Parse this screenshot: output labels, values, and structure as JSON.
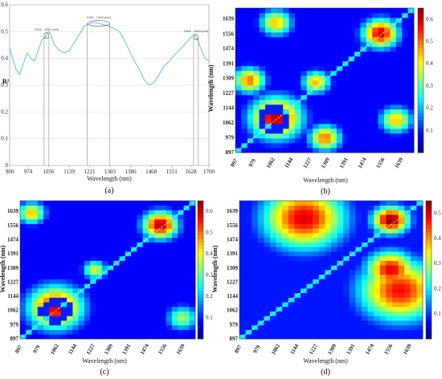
{
  "chart_data": [
    {
      "type": "line",
      "panel": "a",
      "caption": "(a)",
      "ylabel": "R²",
      "xlabel": "Wavelength (nm)",
      "xlim": [
        900,
        1700
      ],
      "ylim": [
        0,
        0.6
      ],
      "xticks": [
        900,
        974,
        1056,
        1139,
        1221,
        1303,
        1386,
        1468,
        1551,
        1628,
        1700
      ],
      "yticks": [
        0,
        0.1,
        0.2,
        0.3,
        0.4,
        0.5,
        0.6
      ],
      "line_color": "#6cc6d8",
      "series": [
        {
          "x": [
            900,
            912,
            925,
            940,
            955,
            970,
            985,
            1000,
            1015,
            1030,
            1045,
            1056,
            1065,
            1080,
            1100,
            1120,
            1140,
            1160,
            1180,
            1200,
            1220,
            1240,
            1260,
            1280,
            1300,
            1320,
            1340,
            1360,
            1380,
            1400,
            1420,
            1440,
            1460,
            1480,
            1500,
            1520,
            1540,
            1560,
            1580,
            1600,
            1620,
            1640,
            1655,
            1670,
            1685,
            1700
          ],
          "y": [
            0.44,
            0.4,
            0.36,
            0.34,
            0.38,
            0.42,
            0.4,
            0.39,
            0.43,
            0.47,
            0.48,
            0.5,
            0.49,
            0.45,
            0.43,
            0.42,
            0.43,
            0.46,
            0.49,
            0.52,
            0.53,
            0.535,
            0.53,
            0.525,
            0.52,
            0.51,
            0.5,
            0.47,
            0.43,
            0.39,
            0.36,
            0.32,
            0.3,
            0.31,
            0.34,
            0.37,
            0.39,
            0.41,
            0.43,
            0.45,
            0.47,
            0.49,
            0.47,
            0.43,
            0.4,
            0.39
          ]
        }
      ],
      "annotations": [
        {
          "label": "1034 - 1061 (nm)",
          "x": 1048
        },
        {
          "label": "1205 - 1309 (nm)",
          "x": 1257
        },
        {
          "label": "1644 - 1653 (nm)",
          "x": 1648
        }
      ]
    },
    {
      "type": "heatmap",
      "panel": "b",
      "caption": "(b)",
      "xlabel": "Wavelength (nm)",
      "ylabel": "Wavelength (nm)",
      "ticks": [
        897,
        979,
        1062,
        1144,
        1227,
        1309,
        1391,
        1474,
        1556,
        1639
      ],
      "colorbar_ticks": [
        0.1,
        0.2,
        0.3,
        0.4,
        0.5,
        0.6
      ],
      "zlim": [
        0,
        0.65
      ],
      "blobs": [
        {
          "cx": 1080,
          "cy": 1090,
          "r": 130,
          "v": 0.62
        },
        {
          "cx": 1260,
          "cy": 1290,
          "r": 70,
          "v": 0.45
        },
        {
          "cx": 1550,
          "cy": 1560,
          "r": 90,
          "v": 0.6
        },
        {
          "cx": 960,
          "cy": 1300,
          "r": 80,
          "v": 0.5
        },
        {
          "cx": 1300,
          "cy": 980,
          "r": 80,
          "v": 0.5
        },
        {
          "cx": 1620,
          "cy": 1080,
          "r": 80,
          "v": 0.45
        },
        {
          "cx": 1080,
          "cy": 1620,
          "r": 80,
          "v": 0.45
        }
      ],
      "ring": {
        "cx": 1070,
        "cy": 1080,
        "r": 55,
        "v": 0.05
      }
    },
    {
      "type": "heatmap",
      "panel": "c",
      "caption": "(c)",
      "xlabel": "Wavelength (nm)",
      "ylabel": "Wavelength (nm)",
      "ticks": [
        897,
        979,
        1062,
        1144,
        1227,
        1309,
        1391,
        1474,
        1556,
        1639
      ],
      "colorbar_ticks": [
        0.1,
        0.2,
        0.3,
        0.4,
        0.5,
        0.6
      ],
      "zlim": [
        0,
        0.65
      ],
      "blobs": [
        {
          "cx": 1060,
          "cy": 1080,
          "r": 140,
          "v": 0.6
        },
        {
          "cx": 1240,
          "cy": 1300,
          "r": 60,
          "v": 0.4
        },
        {
          "cx": 1540,
          "cy": 1560,
          "r": 90,
          "v": 0.62
        },
        {
          "cx": 950,
          "cy": 1630,
          "r": 70,
          "v": 0.45
        },
        {
          "cx": 1640,
          "cy": 1020,
          "r": 80,
          "v": 0.35
        }
      ],
      "ring": {
        "cx": 1060,
        "cy": 1060,
        "r": 55,
        "v": 0.05
      }
    },
    {
      "type": "heatmap",
      "panel": "d",
      "caption": "(d)",
      "xlabel": "Wavelength (nm)",
      "ylabel": "Wavelength (nm)",
      "ticks": [
        897,
        979,
        1062,
        1144,
        1227,
        1309,
        1391,
        1474,
        1556,
        1639
      ],
      "colorbar_ticks": [
        0.1,
        0.2,
        0.3,
        0.4,
        0.5
      ],
      "zlim": [
        0,
        0.55
      ],
      "blobs": [
        {
          "cx": 1180,
          "cy": 1600,
          "r": 200,
          "v": 0.5
        },
        {
          "cx": 1600,
          "cy": 1180,
          "r": 200,
          "v": 0.48
        },
        {
          "cx": 1560,
          "cy": 1590,
          "r": 90,
          "v": 0.55
        },
        {
          "cx": 1560,
          "cy": 1300,
          "r": 120,
          "v": 0.5
        }
      ],
      "ring": null
    }
  ]
}
